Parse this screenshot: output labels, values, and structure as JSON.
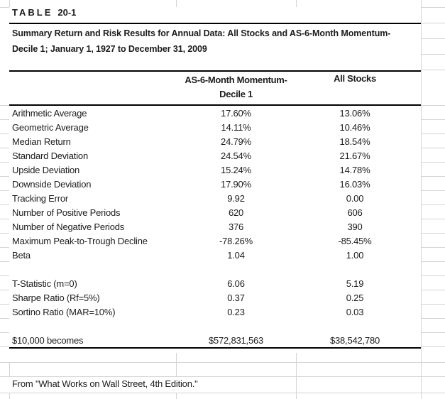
{
  "table_label": {
    "word": "TABLE",
    "number": "20-1"
  },
  "title": {
    "line1": "Summary Return and Risk Results for Annual Data: All Stocks and AS-6-Month Momentum-",
    "line2": "Decile 1; January 1, 1927 to December 31, 2009"
  },
  "header": {
    "momentum_line1": "AS-6-Month Momentum-",
    "momentum_line2": "Decile 1",
    "all_stocks": "All Stocks"
  },
  "rows": [
    {
      "label": "Arithmetic Average",
      "momentum": "17.60%",
      "all_stocks": "13.06%"
    },
    {
      "label": "Geometric Average",
      "momentum": "14.11%",
      "all_stocks": "10.46%"
    },
    {
      "label": "Median Return",
      "momentum": "24.79%",
      "all_stocks": "18.54%"
    },
    {
      "label": "Standard Deviation",
      "momentum": "24.54%",
      "all_stocks": "21.67%"
    },
    {
      "label": "Upside Deviation",
      "momentum": "15.24%",
      "all_stocks": "14.78%"
    },
    {
      "label": "Downside Deviation",
      "momentum": "17.90%",
      "all_stocks": "16.03%"
    },
    {
      "label": "Tracking Error",
      "momentum": "9.92",
      "all_stocks": "0.00"
    },
    {
      "label": "Number of Positive Periods",
      "momentum": "620",
      "all_stocks": "606"
    },
    {
      "label": "Number of Negative Periods",
      "momentum": "376",
      "all_stocks": "390"
    },
    {
      "label": "Maximum Peak-to-Trough Decline",
      "momentum": "-78.26%",
      "all_stocks": "-85.45%"
    },
    {
      "label": "Beta",
      "momentum": "1.04",
      "all_stocks": "1.00"
    },
    {
      "label": "T-Statistic (m=0)",
      "momentum": "6.06",
      "all_stocks": "5.19"
    },
    {
      "label": "Sharpe Ratio (Rf=5%)",
      "momentum": "0.37",
      "all_stocks": "0.25"
    },
    {
      "label": "Sortino Ratio (MAR=10%)",
      "momentum": "0.23",
      "all_stocks": "0.03"
    },
    {
      "label": "$10,000 becomes",
      "momentum": "$572,831,563",
      "all_stocks": "$38,542,780"
    }
  ],
  "footer": {
    "source": "From \"What Works on Wall Street, 4th Edition.\""
  },
  "colors": {
    "text": "#1c1c1c",
    "rule": "#000000",
    "gridline": "#d4d4d4",
    "background": "#ffffff"
  }
}
